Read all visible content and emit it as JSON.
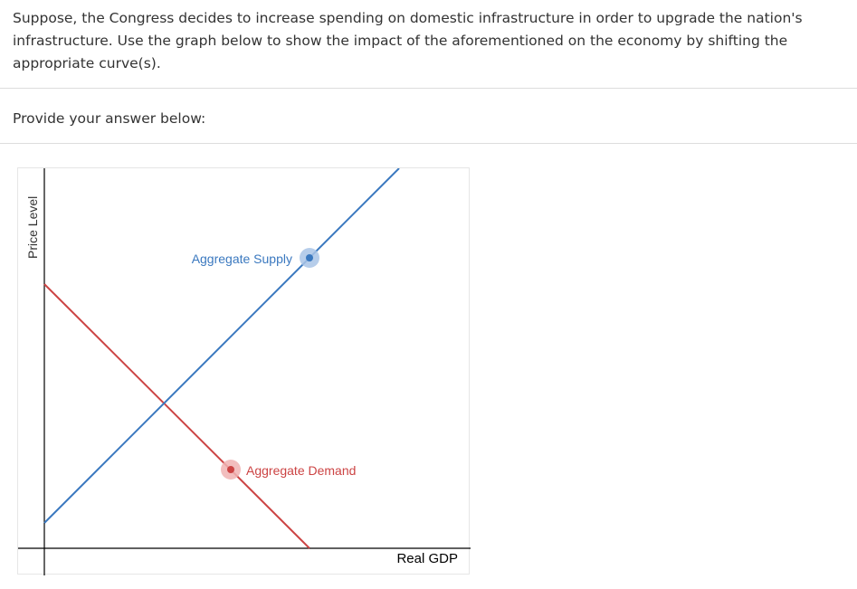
{
  "question": {
    "text": "Suppose, the Congress decides to increase spending on domestic infrastructure in order to upgrade the nation's infrastructure. Use the graph below to show the impact of the aforementioned on the economy by shifting the appropriate curve(s)."
  },
  "answer": {
    "prompt": "Provide your answer below:"
  },
  "graph": {
    "y_axis_label": "Price Level",
    "x_axis_label": "Real GDP",
    "curves": [
      {
        "name": "Aggregate Supply",
        "color": "#3a78bf",
        "handle_color": "#a9c4e6"
      },
      {
        "name": "Aggregate Demand",
        "color": "#cc4444",
        "handle_color": "#f0b3b3"
      }
    ]
  }
}
